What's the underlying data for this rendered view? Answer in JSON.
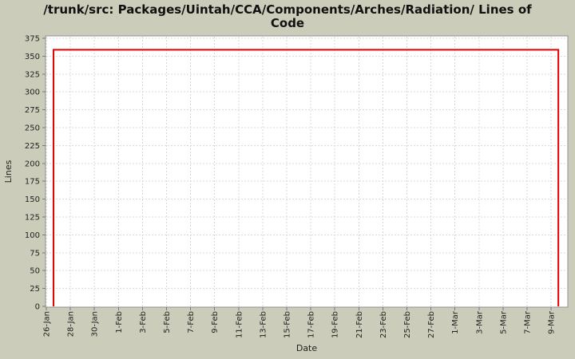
{
  "header": {
    "title_line1": "/trunk/src: Packages/Uintah/CCA/Components/Arches/Radiation/ Lines of",
    "title_line2": "Code"
  },
  "chart_data": {
    "type": "line",
    "title": "/trunk/src: Packages/Uintah/CCA/Components/Arches/Radiation/ Lines of Code",
    "xlabel": "Date",
    "ylabel": "Lines",
    "ylim": [
      0,
      375
    ],
    "y_ticks": [
      0,
      25,
      50,
      75,
      100,
      125,
      150,
      175,
      200,
      225,
      250,
      275,
      300,
      325,
      350,
      375
    ],
    "x_tick_labels": [
      "26-Jan",
      "28-Jan",
      "30-Jan",
      "1-Feb",
      "3-Feb",
      "5-Feb",
      "7-Feb",
      "9-Feb",
      "11-Feb",
      "13-Feb",
      "15-Feb",
      "17-Feb",
      "19-Feb",
      "21-Feb",
      "23-Feb",
      "25-Feb",
      "27-Feb",
      "1-Mar",
      "3-Mar",
      "5-Mar",
      "7-Mar",
      "9-Mar"
    ],
    "x_tick_interval_days": 2,
    "grid": true,
    "legend_position": "none",
    "series": [
      {
        "name": "lines-of-code",
        "color": "#e60000",
        "points": [
          {
            "day_offset_from_26_jan": 0.6,
            "value": 0
          },
          {
            "day_offset_from_26_jan": 0.6,
            "value": 359
          },
          {
            "day_offset_from_26_jan": 42.6,
            "value": 359
          },
          {
            "day_offset_from_26_jan": 42.6,
            "value": 0
          }
        ]
      }
    ],
    "colors": {
      "background": "#ccccba",
      "plot_background": "#ffffff",
      "plot_border": "#909090",
      "gridline": "#d8d8d8",
      "axis_tick": "#777777",
      "tick_label": "#222222",
      "title": "#111111"
    }
  }
}
